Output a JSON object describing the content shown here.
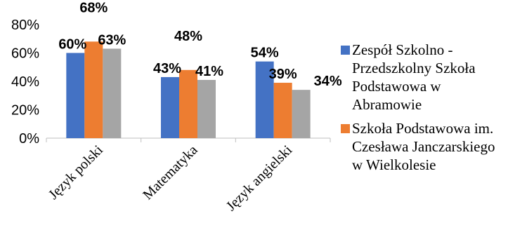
{
  "chart_data": {
    "type": "bar",
    "categories": [
      "Język polski",
      "Matematyka",
      "Język angielski"
    ],
    "series": [
      {
        "name": "Zespół Szkolno - Przedszkolny Szkoła Podstawowa w Abramowie",
        "values": [
          60,
          43,
          54
        ],
        "color": "#4472C4"
      },
      {
        "name": "Szkoła Podstawowa im. Czesława Janczarskiego w Wielkolesie",
        "values": [
          68,
          48,
          39
        ],
        "color": "#ED7D31"
      },
      {
        "values": [
          63,
          41,
          34
        ],
        "color": "#A5A5A5"
      }
    ],
    "value_suffix": "%",
    "ylim": [
      0,
      80
    ],
    "yticks": [
      "0%",
      "20%",
      "40%",
      "60%",
      "80%"
    ],
    "grid": false,
    "legend_position": "right",
    "title": "",
    "xlabel": "",
    "ylabel": ""
  }
}
